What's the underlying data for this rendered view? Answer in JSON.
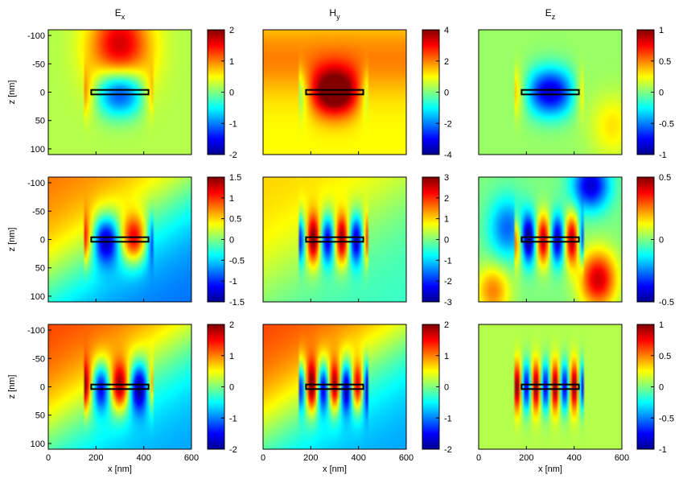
{
  "colors": {
    "colormap": "jet",
    "frame": "#000000",
    "background": "#ffffff"
  },
  "chart_data": {
    "type": "heatmap",
    "layout": {
      "rows": 3,
      "cols": 3
    },
    "column_titles": [
      {
        "base": "E",
        "sub": "x"
      },
      {
        "base": "H",
        "sub": "y"
      },
      {
        "base": "E",
        "sub": "z"
      }
    ],
    "xlabel": "x [nm]",
    "ylabel": "z [nm]",
    "xlim": [
      0,
      600
    ],
    "ylim": [
      -110,
      110
    ],
    "y_reversed": true,
    "x_ticks": [
      0,
      200,
      400,
      600
    ],
    "y_ticks": [
      -100,
      -50,
      0,
      50,
      100
    ],
    "structure": {
      "x": [
        180,
        420
      ],
      "z": [
        -4,
        4
      ]
    },
    "panels": [
      {
        "row": 0,
        "col": 0,
        "clim": [
          -2,
          2
        ],
        "cticks": [
          -2,
          -1,
          0,
          1,
          2
        ],
        "modes": 1,
        "base": 0.15,
        "background": "upper-lobe"
      },
      {
        "row": 0,
        "col": 1,
        "clim": [
          -4,
          4
        ],
        "cticks": [
          -4,
          -2,
          0,
          2,
          4
        ],
        "modes": 1,
        "base": 0.25,
        "background": "dipole"
      },
      {
        "row": 0,
        "col": 2,
        "clim": [
          -1,
          1
        ],
        "cticks": [
          -1,
          -0.5,
          0,
          0.5,
          1
        ],
        "modes": 1,
        "base": 0.05,
        "background": "ez-dipole"
      },
      {
        "row": 1,
        "col": 0,
        "clim": [
          -1.5,
          1.5
        ],
        "cticks": [
          -1.5,
          -1,
          -0.5,
          0,
          0.5,
          1,
          1.5
        ],
        "modes": 2,
        "base": 0.0,
        "background": "diagonal"
      },
      {
        "row": 1,
        "col": 1,
        "clim": [
          -3,
          3
        ],
        "cticks": [
          -3,
          -2,
          -1,
          0,
          1,
          2,
          3
        ],
        "modes": 4,
        "base": 0.1,
        "background": "diagonal-weak"
      },
      {
        "row": 1,
        "col": 2,
        "clim": [
          -0.5,
          0.5
        ],
        "cticks": [
          -0.5,
          0,
          0.5
        ],
        "modes": 4,
        "base": 0.0,
        "background": "quadrupole"
      },
      {
        "row": 2,
        "col": 0,
        "clim": [
          -2,
          2
        ],
        "cticks": [
          -2,
          -1,
          0,
          1,
          2
        ],
        "modes": 3,
        "base": 0.1,
        "background": "diagonal"
      },
      {
        "row": 2,
        "col": 1,
        "clim": [
          -2,
          2
        ],
        "cticks": [
          -2,
          -1,
          0,
          1,
          2
        ],
        "modes": 5,
        "base": 0.1,
        "background": "diagonal"
      },
      {
        "row": 2,
        "col": 2,
        "clim": [
          -1,
          1
        ],
        "cticks": [
          -1,
          -0.5,
          0,
          0.5,
          1
        ],
        "modes": 6,
        "base": 0.1,
        "background": "flat"
      }
    ]
  }
}
